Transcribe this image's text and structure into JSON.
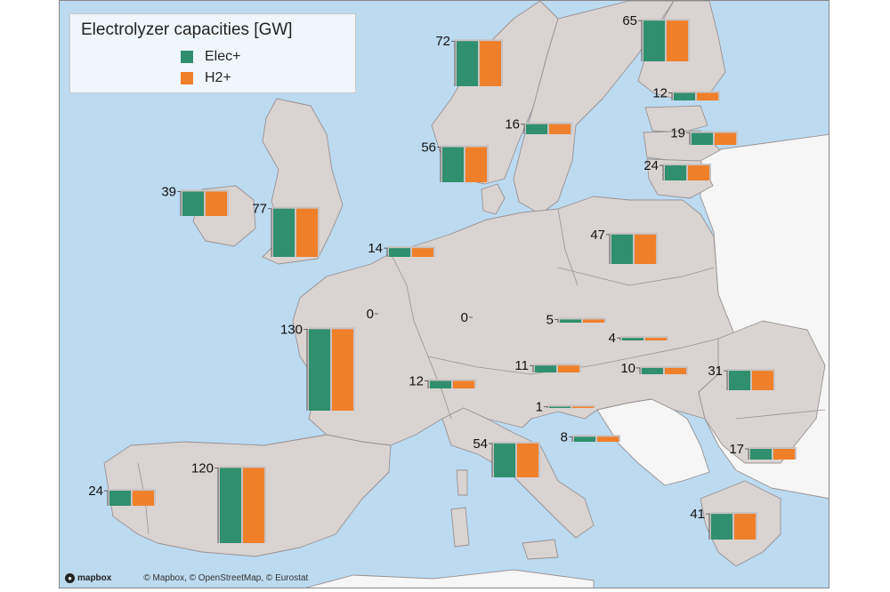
{
  "legend": {
    "title": "Electrolyzer capacities [GW]",
    "series": [
      {
        "name": "Elec+",
        "color": "#2f8f6f"
      },
      {
        "name": "H2+",
        "color": "#f07f2a"
      }
    ]
  },
  "attribution": {
    "logo": "mapbox",
    "text": "© Mapbox, © OpenStreetMap, © Eurostat"
  },
  "colors": {
    "sea": "#bcdaf0",
    "land_in_scope": "#d9d3d2",
    "land_out_of_scope": "#f6f6f6",
    "border": "#9a9393",
    "bar_background": "#c7c2c1"
  },
  "chart_data": {
    "type": "bar",
    "unit": "GW",
    "series": [
      "Elec+",
      "H2+"
    ],
    "regions": [
      {
        "id": "norway-north",
        "value": 72
      },
      {
        "id": "sweden-north",
        "value": 65
      },
      {
        "id": "finland-south",
        "value": 12
      },
      {
        "id": "sweden-south",
        "value": 16
      },
      {
        "id": "latvia",
        "value": 19
      },
      {
        "id": "lithuania",
        "value": 24
      },
      {
        "id": "norway-south",
        "value": 56
      },
      {
        "id": "ireland",
        "value": 39
      },
      {
        "id": "great-britain",
        "value": 77
      },
      {
        "id": "netherlands",
        "value": 14
      },
      {
        "id": "poland",
        "value": 47
      },
      {
        "id": "belgium",
        "value": 0
      },
      {
        "id": "germany",
        "value": 0
      },
      {
        "id": "czechia",
        "value": 5
      },
      {
        "id": "slovakia",
        "value": 4
      },
      {
        "id": "france",
        "value": 130
      },
      {
        "id": "austria",
        "value": 11
      },
      {
        "id": "hungary",
        "value": 10
      },
      {
        "id": "romania",
        "value": 31
      },
      {
        "id": "switzerland",
        "value": 12
      },
      {
        "id": "slovenia",
        "value": 1
      },
      {
        "id": "croatia",
        "value": 8
      },
      {
        "id": "italy",
        "value": 54
      },
      {
        "id": "bulgaria",
        "value": 17
      },
      {
        "id": "spain",
        "value": 120
      },
      {
        "id": "portugal",
        "value": 24
      },
      {
        "id": "greece",
        "value": 41
      }
    ]
  }
}
